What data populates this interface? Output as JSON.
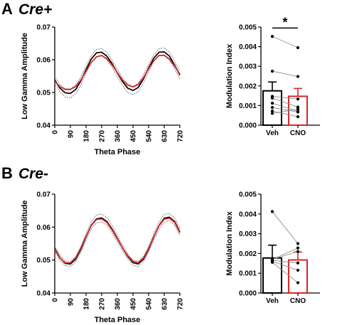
{
  "colors": {
    "veh": "#000000",
    "cno": "#d62728",
    "pair_line": "#8c8c8c",
    "dot": "#000000"
  },
  "panels": [
    {
      "letter": "A",
      "genotype": "Cre+",
      "wave": {
        "type": "line",
        "xlabel": "Theta Phase",
        "ylabel": "Low Gamma Amplitude",
        "xticks": [
          0,
          90,
          180,
          270,
          360,
          450,
          540,
          630,
          720
        ],
        "yticks": [
          0.04,
          0.05,
          0.06,
          0.07
        ],
        "ytick_labels": [
          "0.04",
          "0.05",
          "0.06",
          "0.07"
        ],
        "xlim": [
          0,
          720
        ],
        "ylim": [
          0.04,
          0.07
        ],
        "series": [
          {
            "color": "veh",
            "x": [
              0,
              30,
              60,
              90,
              120,
              150,
              180,
              210,
              240,
              270,
              300,
              330,
              360,
              390,
              420,
              450,
              480,
              510,
              540,
              570,
              600,
              630,
              660,
              690,
              720
            ],
            "y": [
              0.0538,
              0.0513,
              0.0499,
              0.0497,
              0.0509,
              0.0535,
              0.057,
              0.0602,
              0.0621,
              0.0623,
              0.0611,
              0.0588,
              0.056,
              0.0533,
              0.0513,
              0.0506,
              0.0515,
              0.0541,
              0.0575,
              0.0605,
              0.0623,
              0.0624,
              0.0611,
              0.0583,
              0.0553
            ]
          },
          {
            "color": "cno",
            "x": [
              0,
              30,
              60,
              90,
              120,
              150,
              180,
              210,
              240,
              270,
              300,
              330,
              360,
              390,
              420,
              450,
              480,
              510,
              540,
              570,
              600,
              630,
              660,
              690,
              720
            ],
            "y": [
              0.0534,
              0.0518,
              0.0509,
              0.0509,
              0.0518,
              0.0538,
              0.0565,
              0.0591,
              0.0609,
              0.0613,
              0.0603,
              0.0584,
              0.0561,
              0.0538,
              0.0522,
              0.0517,
              0.0524,
              0.0545,
              0.0572,
              0.0597,
              0.0613,
              0.0614,
              0.0602,
              0.058,
              0.0556
            ]
          }
        ],
        "error_bounds": [
          {
            "x": [
              0,
              30,
              60,
              90,
              120,
              150,
              180,
              210,
              240,
              270,
              300,
              330,
              360,
              390,
              420,
              450,
              480,
              510,
              540,
              570,
              600,
              630,
              660,
              690,
              720
            ],
            "y": [
              0.0548,
              0.0524,
              0.0512,
              0.0511,
              0.0522,
              0.0547,
              0.0581,
              0.0612,
              0.0632,
              0.0634,
              0.0622,
              0.0599,
              0.0571,
              0.0545,
              0.0526,
              0.0519,
              0.0528,
              0.0553,
              0.0586,
              0.0615,
              0.0634,
              0.0636,
              0.0623,
              0.0595,
              0.0565
            ]
          },
          {
            "x": [
              0,
              30,
              60,
              90,
              120,
              150,
              180,
              210,
              240,
              270,
              300,
              330,
              360,
              390,
              420,
              450,
              480,
              510,
              540,
              570,
              600,
              630,
              660,
              690,
              720
            ],
            "y": [
              0.0528,
              0.0502,
              0.0486,
              0.0483,
              0.0496,
              0.0523,
              0.0559,
              0.0592,
              0.061,
              0.0612,
              0.06,
              0.0577,
              0.0549,
              0.0521,
              0.05,
              0.0493,
              0.0502,
              0.0529,
              0.0564,
              0.0595,
              0.0612,
              0.0612,
              0.0599,
              0.0571,
              0.0541
            ]
          }
        ]
      },
      "bars": {
        "type": "bar",
        "ylabel": "Modulation Index",
        "categories": [
          "Veh",
          "CNO"
        ],
        "values": [
          0.00175,
          0.00147
        ],
        "errors": [
          0.00045,
          0.0004
        ],
        "bar_colors": [
          "veh",
          "cno"
        ],
        "ylim": [
          0,
          0.005
        ],
        "yticks": [
          0.0,
          0.001,
          0.002,
          0.003,
          0.004,
          0.005
        ],
        "ytick_labels": [
          "0.000",
          "0.001",
          "0.002",
          "0.003",
          "0.004",
          "0.005"
        ],
        "pairs": [
          [
            0.00452,
            0.00395
          ],
          [
            0.00275,
            0.00248
          ],
          [
            0.00147,
            0.00133
          ],
          [
            0.00138,
            0.00092
          ],
          [
            0.00112,
            0.0007
          ],
          [
            0.0009,
            0.00067
          ],
          [
            0.00072,
            0.00043
          ],
          [
            0.0006,
            0.00082
          ]
        ],
        "significance": "*"
      }
    },
    {
      "letter": "B",
      "genotype": "Cre-",
      "wave": {
        "type": "line",
        "xlabel": "Theta Phase",
        "ylabel": "Low Gamma Amplitude",
        "xticks": [
          0,
          90,
          180,
          270,
          360,
          450,
          540,
          630,
          720
        ],
        "yticks": [
          0.04,
          0.05,
          0.06,
          0.07
        ],
        "ytick_labels": [
          "0.04",
          "0.05",
          "0.06",
          "0.07"
        ],
        "xlim": [
          0,
          720
        ],
        "ylim": [
          0.04,
          0.07
        ],
        "series": [
          {
            "color": "veh",
            "x": [
              0,
              30,
              60,
              90,
              120,
              150,
              180,
              210,
              240,
              270,
              300,
              330,
              360,
              390,
              420,
              450,
              480,
              510,
              540,
              570,
              600,
              630,
              660,
              690,
              720
            ],
            "y": [
              0.0535,
              0.0507,
              0.049,
              0.0488,
              0.0502,
              0.0532,
              0.057,
              0.0605,
              0.0625,
              0.0628,
              0.0617,
              0.0594,
              0.0566,
              0.0537,
              0.0511,
              0.0492,
              0.0488,
              0.0502,
              0.0532,
              0.057,
              0.0605,
              0.0627,
              0.063,
              0.0617,
              0.0585
            ]
          },
          {
            "color": "cno",
            "x": [
              0,
              30,
              60,
              90,
              120,
              150,
              180,
              210,
              240,
              270,
              300,
              330,
              360,
              390,
              420,
              450,
              480,
              510,
              540,
              570,
              600,
              630,
              660,
              690,
              720
            ],
            "y": [
              0.0532,
              0.0506,
              0.0492,
              0.0491,
              0.0506,
              0.0536,
              0.0572,
              0.0604,
              0.0623,
              0.0625,
              0.0614,
              0.0591,
              0.0564,
              0.0537,
              0.0513,
              0.0496,
              0.0492,
              0.0506,
              0.0535,
              0.0571,
              0.0604,
              0.0624,
              0.0627,
              0.0614,
              0.0583
            ]
          }
        ],
        "error_bounds": [
          {
            "x": [
              0,
              30,
              60,
              90,
              120,
              150,
              180,
              210,
              240,
              270,
              300,
              330,
              360,
              390,
              420,
              450,
              480,
              510,
              540,
              570,
              600,
              630,
              660,
              690,
              720
            ],
            "y": [
              0.0543,
              0.0515,
              0.0497,
              0.0495,
              0.051,
              0.0541,
              0.058,
              0.0616,
              0.0637,
              0.064,
              0.0628,
              0.0605,
              0.0576,
              0.0546,
              0.0519,
              0.05,
              0.0496,
              0.051,
              0.0541,
              0.058,
              0.0616,
              0.0639,
              0.0641,
              0.0628,
              0.0595
            ]
          },
          {
            "x": [
              0,
              30,
              60,
              90,
              120,
              150,
              180,
              210,
              240,
              270,
              300,
              330,
              360,
              390,
              420,
              450,
              480,
              510,
              540,
              570,
              600,
              630,
              660,
              690,
              720
            ],
            "y": [
              0.0527,
              0.0499,
              0.0483,
              0.0481,
              0.0494,
              0.0523,
              0.056,
              0.0594,
              0.0613,
              0.0616,
              0.0606,
              0.0583,
              0.0556,
              0.0528,
              0.0503,
              0.0484,
              0.048,
              0.0494,
              0.0523,
              0.056,
              0.0594,
              0.0615,
              0.0619,
              0.0606,
              0.0575
            ]
          }
        ]
      },
      "bars": {
        "type": "bar",
        "ylabel": "Modulation Index",
        "categories": [
          "Veh",
          "CNO"
        ],
        "values": [
          0.00177,
          0.00167
        ],
        "errors": [
          0.00065,
          0.0004
        ],
        "bar_colors": [
          "veh",
          "cno"
        ],
        "ylim": [
          0,
          0.005
        ],
        "yticks": [
          0.0,
          0.001,
          0.002,
          0.003,
          0.004,
          0.005
        ],
        "ytick_labels": [
          "0.000",
          "0.001",
          "0.002",
          "0.003",
          "0.004",
          "0.005"
        ],
        "pairs": [
          [
            0.00412,
            0.0025
          ],
          [
            0.0017,
            0.00228
          ],
          [
            0.00165,
            0.00152
          ],
          [
            0.0016,
            0.00115
          ],
          [
            0.00155,
            0.00052
          ],
          [
            0.0017,
            0.0021
          ]
        ],
        "significance": ""
      }
    }
  ]
}
